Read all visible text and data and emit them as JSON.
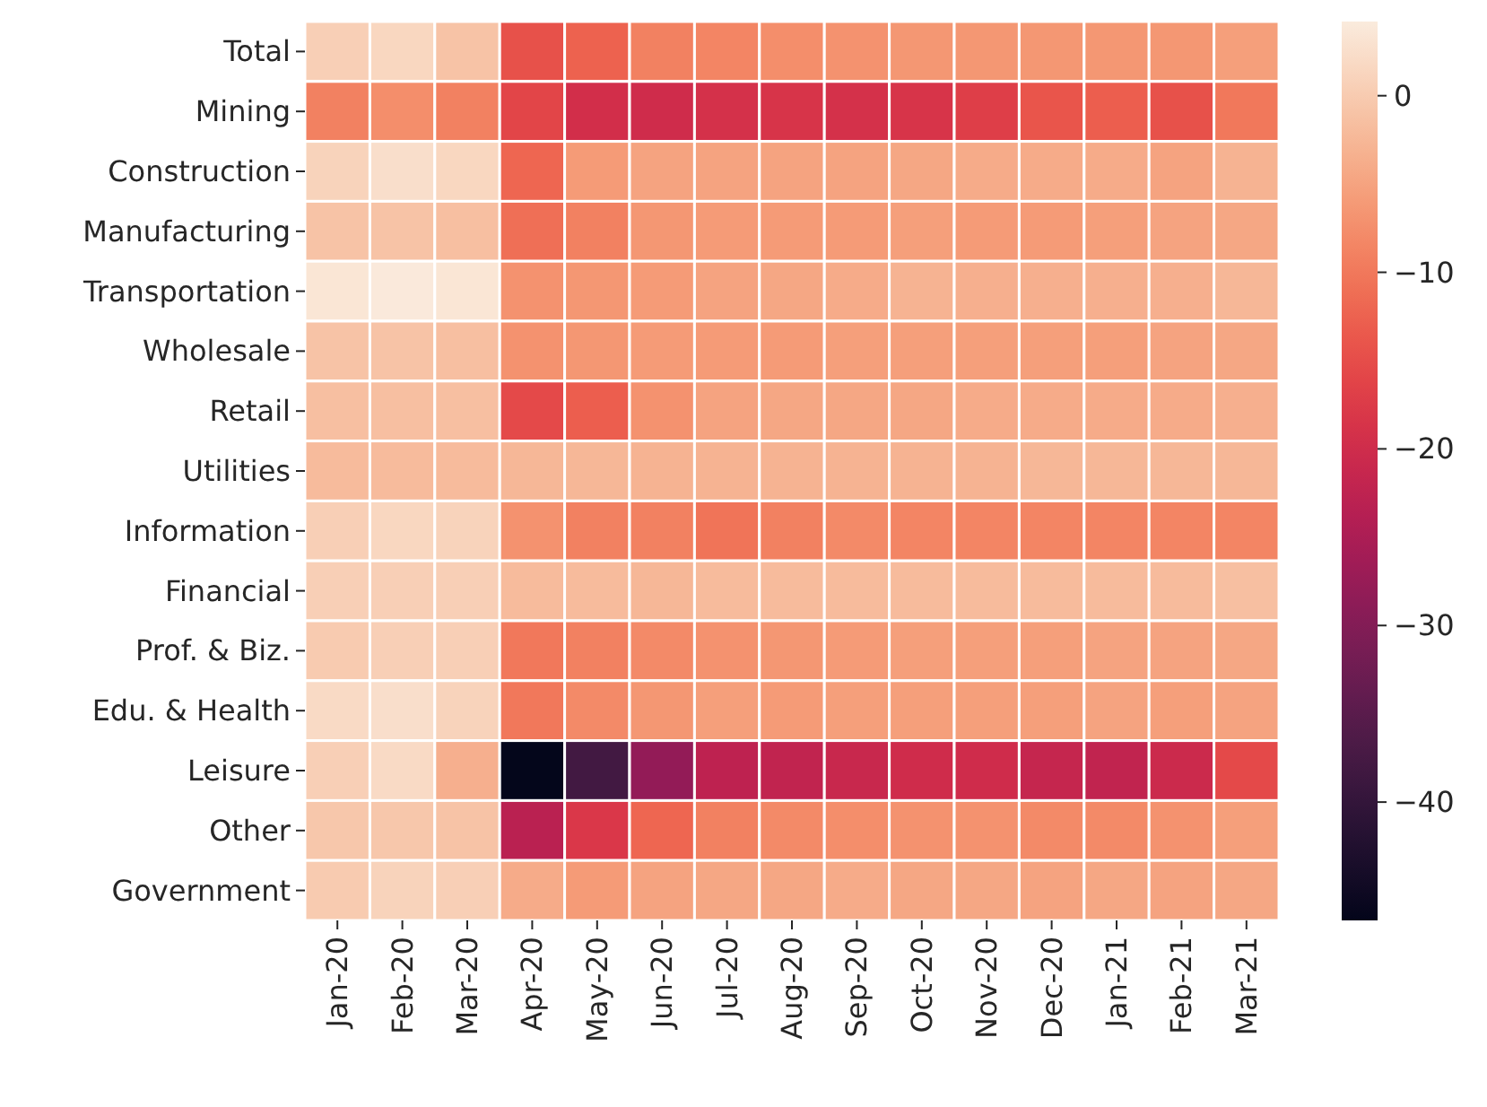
{
  "chart_data": {
    "type": "heatmap",
    "categories": [
      "Jan-20",
      "Feb-20",
      "Mar-20",
      "Apr-20",
      "May-20",
      "Jun-20",
      "Jul-20",
      "Aug-20",
      "Sep-20",
      "Oct-20",
      "Nov-20",
      "Dec-20",
      "Jan-21",
      "Feb-21",
      "Mar-21"
    ],
    "y_categories": [
      "Total",
      "Mining",
      "Construction",
      "Manufacturing",
      "Transportation",
      "Wholesale",
      "Retail",
      "Utilities",
      "Information",
      "Financial",
      "Prof. & Biz.",
      "Edu. & Health",
      "Leisure",
      "Other",
      "Government"
    ],
    "cells": [
      [
        0.5,
        1.5,
        -1,
        -14.5,
        -12.5,
        -9,
        -8.5,
        -7.5,
        -7,
        -6.5,
        -6.5,
        -6.5,
        -6.5,
        -6.5,
        -5.5
      ],
      [
        -9,
        -7.5,
        -9,
        -16,
        -19.5,
        -20,
        -19,
        -18.5,
        -19,
        -18.5,
        -17,
        -14,
        -13,
        -14.5,
        -10
      ],
      [
        1,
        2.5,
        1.5,
        -12,
        -6,
        -5,
        -5,
        -5,
        -5,
        -4.5,
        -4,
        -4,
        -4,
        -5,
        -3
      ],
      [
        -1,
        -1,
        -1.5,
        -11,
        -9,
        -6.5,
        -6,
        -6,
        -6,
        -5.5,
        -6,
        -6,
        -5.5,
        -5,
        -4.5
      ],
      [
        3.5,
        4,
        3.5,
        -7,
        -6.5,
        -6,
        -5,
        -4.5,
        -4,
        -3,
        -3.5,
        -3.5,
        -3.5,
        -3.5,
        -2.5
      ],
      [
        -1,
        -1,
        -1.5,
        -7,
        -6.5,
        -6,
        -6,
        -6,
        -5.5,
        -5.5,
        -5.5,
        -5.5,
        -5.5,
        -5,
        -4.5
      ],
      [
        -1.5,
        -1.5,
        -1.5,
        -15.5,
        -13,
        -7,
        -5,
        -4.5,
        -4.5,
        -4.5,
        -4,
        -4,
        -4,
        -4,
        -3.5
      ],
      [
        -2,
        -2,
        -2,
        -2.5,
        -2.5,
        -3,
        -3,
        -3,
        -3,
        -3,
        -3,
        -2.5,
        -2.5,
        -2.5,
        -2.5
      ],
      [
        0.5,
        1.5,
        1,
        -7,
        -9,
        -9,
        -10.5,
        -9,
        -8,
        -8.5,
        -8.5,
        -8.5,
        -8.5,
        -8.5,
        -8.5
      ],
      [
        0.5,
        0.5,
        0.5,
        -2,
        -2,
        -2.5,
        -2,
        -2,
        -2,
        -2,
        -2,
        -2,
        -2,
        -2,
        -1.5
      ],
      [
        0,
        0.5,
        0.5,
        -10,
        -9,
        -8,
        -7,
        -6.5,
        -6,
        -5.5,
        -5.5,
        -5.5,
        -5,
        -5,
        -4.5
      ],
      [
        2,
        2.5,
        1,
        -10,
        -8,
        -6.5,
        -5.5,
        -6,
        -5.5,
        -5.5,
        -5.5,
        -5.5,
        -5,
        -5.5,
        -5
      ],
      [
        0.5,
        2,
        -3.5,
        -46.5,
        -38,
        -28,
        -22.5,
        -22,
        -21,
        -20,
        -20,
        -21.5,
        -22,
        -20.5,
        -15.5
      ],
      [
        -0.5,
        -0.5,
        -1,
        -23,
        -18,
        -12,
        -9,
        -8,
        -7.5,
        -7,
        -7,
        -8,
        -8,
        -7,
        -5.5
      ],
      [
        0,
        1,
        0.5,
        -4,
        -6,
        -5,
        -4.5,
        -4.5,
        -4,
        -4.5,
        -4.5,
        -5,
        -4.5,
        -5,
        -4.5
      ]
    ],
    "clim": [
      -46.7,
      4.2
    ],
    "cticks": [
      {
        "value": 0,
        "label": "0"
      },
      {
        "value": -10,
        "label": "−10"
      },
      {
        "value": -20,
        "label": "−20"
      },
      {
        "value": -30,
        "label": "−30"
      },
      {
        "value": -40,
        "label": "−40"
      }
    ]
  }
}
